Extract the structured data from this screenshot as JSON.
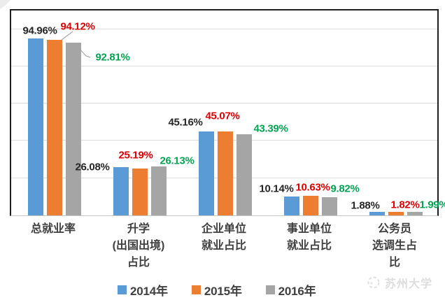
{
  "chart_data": {
    "type": "bar",
    "title": "",
    "xlabel": "",
    "ylabel": "",
    "ylim": [
      0,
      110
    ],
    "grid": true,
    "gridline_values": [
      20,
      40,
      60,
      80,
      100
    ],
    "legend_position": "bottom",
    "value_suffix": "%",
    "categories": [
      "总就业率",
      "升学\n(出国出境)\n占比",
      "企业单位\n就业占比",
      "事业单位\n就业占比",
      "公务员\n选调生占比"
    ],
    "series": [
      {
        "name": "2014年",
        "color": "#5B9BD5",
        "label_color": "#262626",
        "values": [
          94.96,
          26.08,
          45.16,
          10.14,
          1.88
        ]
      },
      {
        "name": "2015年",
        "color": "#ED7D31",
        "label_color": "#E00000",
        "values": [
          94.12,
          25.19,
          45.07,
          10.63,
          1.82
        ]
      },
      {
        "name": "2016年",
        "color": "#A5A5A5",
        "label_color": "#00A550",
        "values": [
          92.81,
          26.13,
          43.39,
          9.82,
          1.99
        ]
      }
    ]
  },
  "watermark": {
    "text": "苏州大学"
  }
}
